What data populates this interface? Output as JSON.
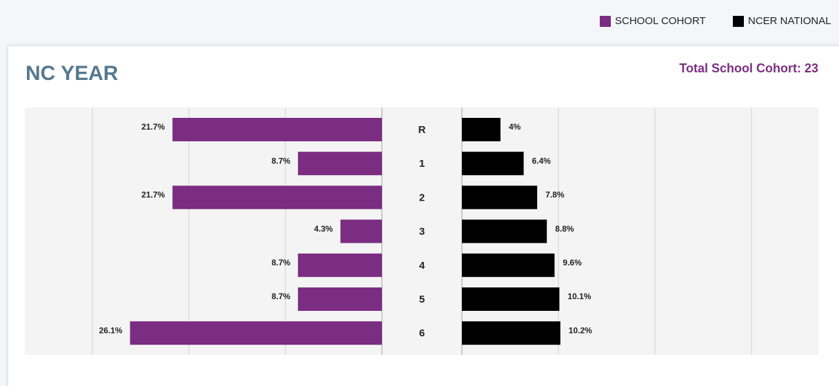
{
  "chart_data": {
    "type": "bar",
    "title": "NC YEAR",
    "subtitle": "Total School Cohort: 23",
    "categories": [
      "R",
      "1",
      "2",
      "3",
      "4",
      "5",
      "6"
    ],
    "series": [
      {
        "name": "SCHOOL COHORT",
        "color": "#7b2d82",
        "values": [
          21.7,
          8.7,
          21.7,
          4.3,
          8.7,
          8.7,
          26.1
        ],
        "value_labels": [
          "21.7%",
          "8.7%",
          "21.7%",
          "4.3%",
          "8.7%",
          "8.7%",
          "26.1%"
        ]
      },
      {
        "name": "NCER NATIONAL",
        "color": "#000000",
        "values": [
          4,
          6.4,
          7.8,
          8.8,
          9.6,
          10.1,
          10.2
        ],
        "value_labels": [
          "4%",
          "6.4%",
          "7.8%",
          "8.8%",
          "9.6%",
          "10.1%",
          "10.2%"
        ]
      }
    ],
    "xlim": [
      0,
      37
    ],
    "xticks": [
      0,
      10,
      20,
      30
    ],
    "grid": true
  }
}
